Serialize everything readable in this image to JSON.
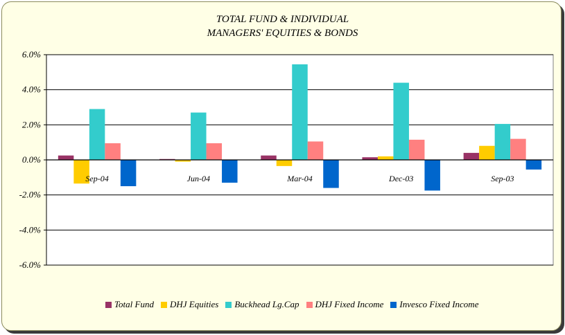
{
  "chart_data": {
    "type": "bar",
    "title": [
      "TOTAL FUND  & INDIVIDUAL",
      "MANAGERS' EQUITIES & BONDS"
    ],
    "categories": [
      "Sep-04",
      "Jun-04",
      "Mar-04",
      "Dec-03",
      "Sep-03"
    ],
    "series": [
      {
        "name": "Total Fund",
        "color": "#993366",
        "values": [
          0.25,
          0.05,
          0.25,
          0.15,
          0.4
        ]
      },
      {
        "name": "DHJ Equities",
        "color": "#ffcc00",
        "values": [
          -1.35,
          -0.1,
          -0.35,
          0.2,
          0.8
        ]
      },
      {
        "name": "Buckhead Lg.Cap",
        "color": "#33cccc",
        "values": [
          2.9,
          2.7,
          5.45,
          4.4,
          2.05
        ]
      },
      {
        "name": "DHJ Fixed Income",
        "color": "#ff8080",
        "values": [
          0.95,
          0.95,
          1.05,
          1.15,
          1.2
        ]
      },
      {
        "name": "Invesco Fixed Income",
        "color": "#0066cc",
        "values": [
          -1.5,
          -1.3,
          -1.6,
          -1.75,
          -0.55
        ]
      }
    ],
    "ylim": [
      -6,
      6
    ],
    "yticks": [
      6,
      4,
      2,
      0,
      -2,
      -4,
      -6
    ],
    "ytick_labels": [
      "6.0%",
      "4.0%",
      "2.0%",
      "0.0%",
      "-2.0%",
      "-4.0%",
      "-6.0%"
    ],
    "grid": true,
    "legend_position": "bottom"
  }
}
